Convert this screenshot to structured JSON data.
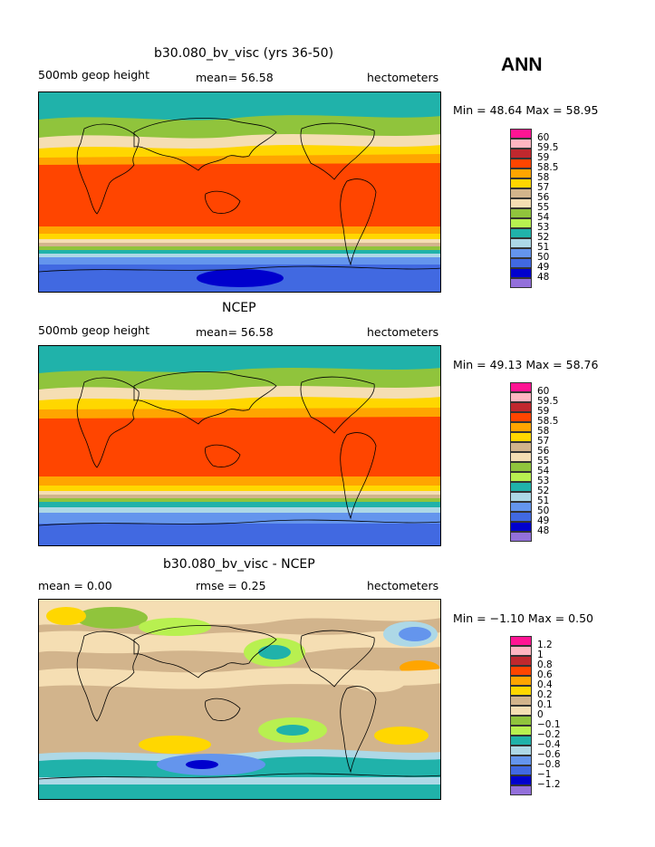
{
  "header": {
    "season": "ANN"
  },
  "panels": [
    {
      "id": "model",
      "title": "b30.080_bv_visc (yrs 36-50)",
      "left_label": "500mb geop height",
      "center_label": "mean=  56.58",
      "right_label": "hectometers",
      "minmax": "Min =   48.64  Max =   58.95",
      "legend_labels": [
        "60",
        "59.5",
        "59",
        "58.5",
        "58",
        "57",
        "56",
        "55",
        "54",
        "53",
        "52",
        "51",
        "50",
        "49",
        "48"
      ],
      "legend_colors": [
        "#ff1493",
        "#ffb6c1",
        "#c0282e",
        "#ff4500",
        "#ffa500",
        "#ffd700",
        "#d2b48c",
        "#f5deb3",
        "#90c43c",
        "#b8f050",
        "#20b2aa",
        "#add8e6",
        "#6495ed",
        "#4169e1",
        "#0000cd",
        "#9370db"
      ]
    },
    {
      "id": "obs",
      "title": "NCEP",
      "left_label": "500mb geop height",
      "center_label": "mean=  56.58",
      "right_label": "hectometers",
      "minmax": "Min =   49.13  Max =   58.76",
      "legend_labels": [
        "60",
        "59.5",
        "59",
        "58.5",
        "58",
        "57",
        "56",
        "55",
        "54",
        "53",
        "52",
        "51",
        "50",
        "49",
        "48"
      ],
      "legend_colors": [
        "#ff1493",
        "#ffb6c1",
        "#c0282e",
        "#ff4500",
        "#ffa500",
        "#ffd700",
        "#d2b48c",
        "#f5deb3",
        "#90c43c",
        "#b8f050",
        "#20b2aa",
        "#add8e6",
        "#6495ed",
        "#4169e1",
        "#0000cd",
        "#9370db"
      ]
    },
    {
      "id": "diff",
      "title": "b30.080_bv_visc - NCEP",
      "left_label": "mean =    0.00",
      "center_label": "rmse =    0.25",
      "right_label": "hectometers",
      "minmax": "Min =  −1.10  Max =    0.50",
      "legend_labels": [
        "1.2",
        "1",
        "0.8",
        "0.6",
        "0.4",
        "0.2",
        "0.1",
        "0",
        "−0.1",
        "−0.2",
        "−0.4",
        "−0.6",
        "−0.8",
        "−1",
        "−1.2"
      ],
      "legend_colors": [
        "#ff1493",
        "#ffb6c1",
        "#c0282e",
        "#ff4500",
        "#ffa500",
        "#ffd700",
        "#d2b48c",
        "#f5deb3",
        "#90c43c",
        "#b8f050",
        "#20b2aa",
        "#add8e6",
        "#6495ed",
        "#4169e1",
        "#0000cd",
        "#9370db"
      ]
    }
  ]
}
